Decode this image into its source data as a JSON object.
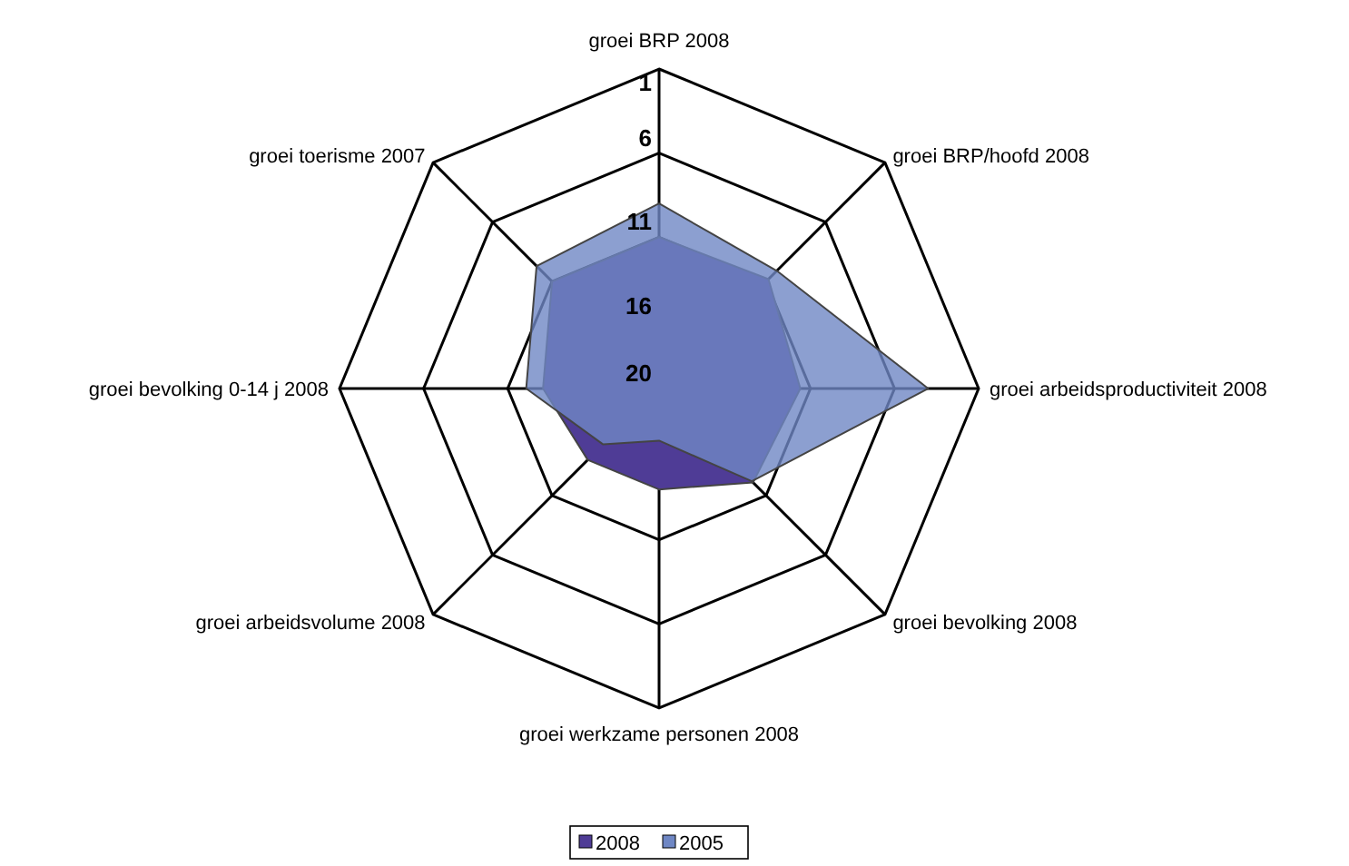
{
  "chart_data": {
    "type": "radar",
    "categories": [
      "groei BRP 2008",
      "groei BRP/hoofd 2008",
      "groei arbeidsproductiviteit 2008",
      "groei bevolking 2008",
      "groei werkzame personen 2008",
      "groei arbeidsvolume 2008",
      "groei bevolking 0-14 j 2008",
      "groei toerisme 2007"
    ],
    "series": [
      {
        "name": "2008",
        "color": "#4f3c96",
        "values": [
          11.0,
          10.8,
          11.6,
          12.1,
          14.0,
          14.0,
          13.1,
          11.0
        ]
      },
      {
        "name": "2005",
        "color": "#6f87c4",
        "values": [
          9.0,
          10.1,
          4.0,
          12.2,
          16.9,
          15.3,
          12.1,
          9.7
        ]
      }
    ],
    "ylim": [
      20,
      1
    ],
    "yticks": [
      1,
      6,
      11,
      16,
      20
    ],
    "legend": "bottom"
  }
}
